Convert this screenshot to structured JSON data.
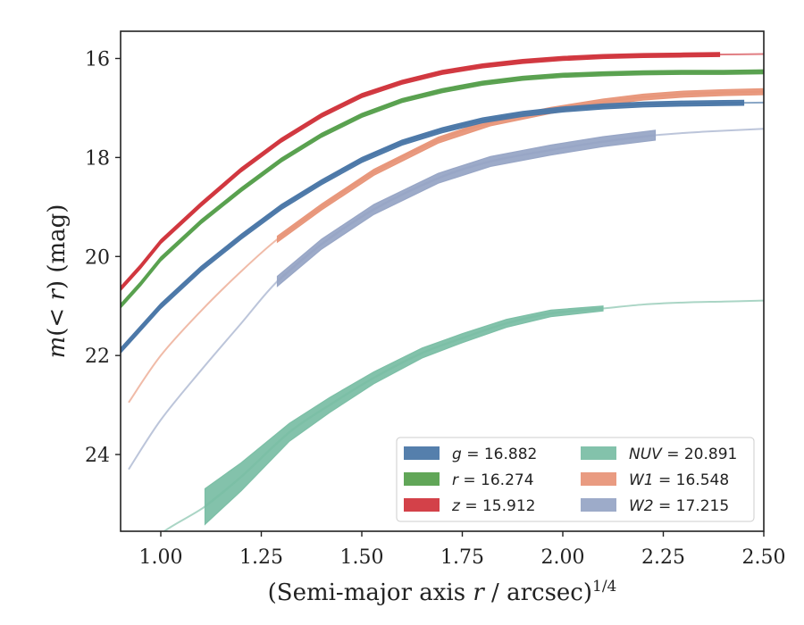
{
  "chart_data": {
    "type": "line",
    "xlabel": "(Semi-major axis r / arcsec)^1/4",
    "ylabel": "m(< r) (mag)",
    "xlim": [
      0.9,
      2.5
    ],
    "ylim": [
      25.55,
      15.45
    ],
    "y_inverted": true,
    "x_ticks": [
      1.0,
      1.25,
      1.5,
      1.75,
      2.0,
      2.25,
      2.5
    ],
    "x_tick_labels": [
      "1.00",
      "1.25",
      "1.50",
      "1.75",
      "2.00",
      "2.25",
      "2.50"
    ],
    "y_ticks": [
      16,
      18,
      20,
      22,
      24
    ],
    "y_tick_labels": [
      "16",
      "18",
      "20",
      "22",
      "24"
    ],
    "grid": false,
    "legend_position": "bottom-right",
    "series": [
      {
        "name": "g = 16.882",
        "label_var": "g",
        "label_val": "16.882",
        "color": "#4C78A8",
        "x": [
          0.9,
          0.95,
          1.0,
          1.1,
          1.2,
          1.3,
          1.4,
          1.5,
          1.6,
          1.7,
          1.8,
          1.9,
          2.0,
          2.1,
          2.2,
          2.3,
          2.4,
          2.5
        ],
        "y": [
          21.9,
          21.45,
          21.0,
          20.25,
          19.6,
          19.0,
          18.5,
          18.05,
          17.7,
          17.45,
          17.25,
          17.12,
          17.03,
          16.97,
          16.93,
          16.91,
          16.9,
          16.89
        ],
        "measured_until": 2.45,
        "band": 0.05
      },
      {
        "name": "r = 16.274",
        "label_var": "r",
        "label_val": "16.274",
        "color": "#59A14F",
        "x": [
          0.9,
          0.95,
          1.0,
          1.1,
          1.2,
          1.3,
          1.4,
          1.5,
          1.6,
          1.7,
          1.8,
          1.9,
          2.0,
          2.1,
          2.2,
          2.3,
          2.4,
          2.5
        ],
        "y": [
          21.0,
          20.55,
          20.05,
          19.3,
          18.65,
          18.05,
          17.55,
          17.15,
          16.85,
          16.65,
          16.5,
          16.4,
          16.34,
          16.31,
          16.29,
          16.28,
          16.28,
          16.27
        ],
        "measured_until": 2.5,
        "band": 0.04
      },
      {
        "name": "z = 15.912",
        "label_var": "z",
        "label_val": "15.912",
        "color": "#D1373F",
        "x": [
          0.9,
          0.95,
          1.0,
          1.1,
          1.2,
          1.3,
          1.4,
          1.5,
          1.6,
          1.7,
          1.8,
          1.9,
          2.0,
          2.1,
          2.2,
          2.3,
          2.4,
          2.5
        ],
        "y": [
          20.65,
          20.2,
          19.7,
          18.95,
          18.25,
          17.65,
          17.15,
          16.75,
          16.48,
          16.28,
          16.15,
          16.06,
          16.0,
          15.96,
          15.94,
          15.93,
          15.92,
          15.91
        ],
        "measured_until": 2.39,
        "band": 0.04
      },
      {
        "name": "NUV = 20.891",
        "label_var": "NUV",
        "label_val": "20.891",
        "color": "#7CBFA6",
        "x": [
          0.9,
          0.95,
          1.0,
          1.11,
          1.2,
          1.32,
          1.42,
          1.53,
          1.65,
          1.75,
          1.86,
          1.97,
          2.1,
          2.2,
          2.3,
          2.4,
          2.5
        ],
        "y": [
          26.6,
          26.1,
          25.6,
          25.05,
          24.45,
          23.55,
          23.0,
          22.45,
          21.95,
          21.65,
          21.35,
          21.15,
          21.05,
          20.97,
          20.93,
          20.91,
          20.89
        ],
        "measured_from": 1.11,
        "measured_until": 2.1,
        "band_x": [
          1.11,
          1.32,
          1.53,
          1.65,
          1.86,
          2.1
        ],
        "band_w": [
          0.36,
          0.18,
          0.12,
          0.1,
          0.08,
          0.05
        ]
      },
      {
        "name": "W1 = 16.548",
        "label_var": "W1",
        "label_val": "16.548",
        "color": "#E8967A",
        "x": [
          0.92,
          1.0,
          1.1,
          1.2,
          1.29,
          1.4,
          1.53,
          1.69,
          1.82,
          1.97,
          2.1,
          2.2,
          2.3,
          2.4,
          2.5
        ],
        "y": [
          22.95,
          22.0,
          21.1,
          20.3,
          19.65,
          19.0,
          18.3,
          17.65,
          17.3,
          17.05,
          16.88,
          16.78,
          16.72,
          16.69,
          16.67
        ],
        "measured_from": 1.29,
        "measured_until": 2.5,
        "band": 0.06
      },
      {
        "name": "W2 = 17.215",
        "label_var": "W2",
        "label_val": "17.215",
        "color": "#98A6C6",
        "x": [
          0.92,
          1.0,
          1.1,
          1.2,
          1.29,
          1.4,
          1.53,
          1.69,
          1.82,
          1.97,
          2.1,
          2.23,
          2.35,
          2.5
        ],
        "y": [
          24.3,
          23.3,
          22.3,
          21.35,
          20.5,
          19.75,
          19.05,
          18.42,
          18.08,
          17.85,
          17.68,
          17.55,
          17.48,
          17.42
        ],
        "measured_from": 1.29,
        "measured_until": 2.23,
        "band": 0.1
      }
    ]
  }
}
